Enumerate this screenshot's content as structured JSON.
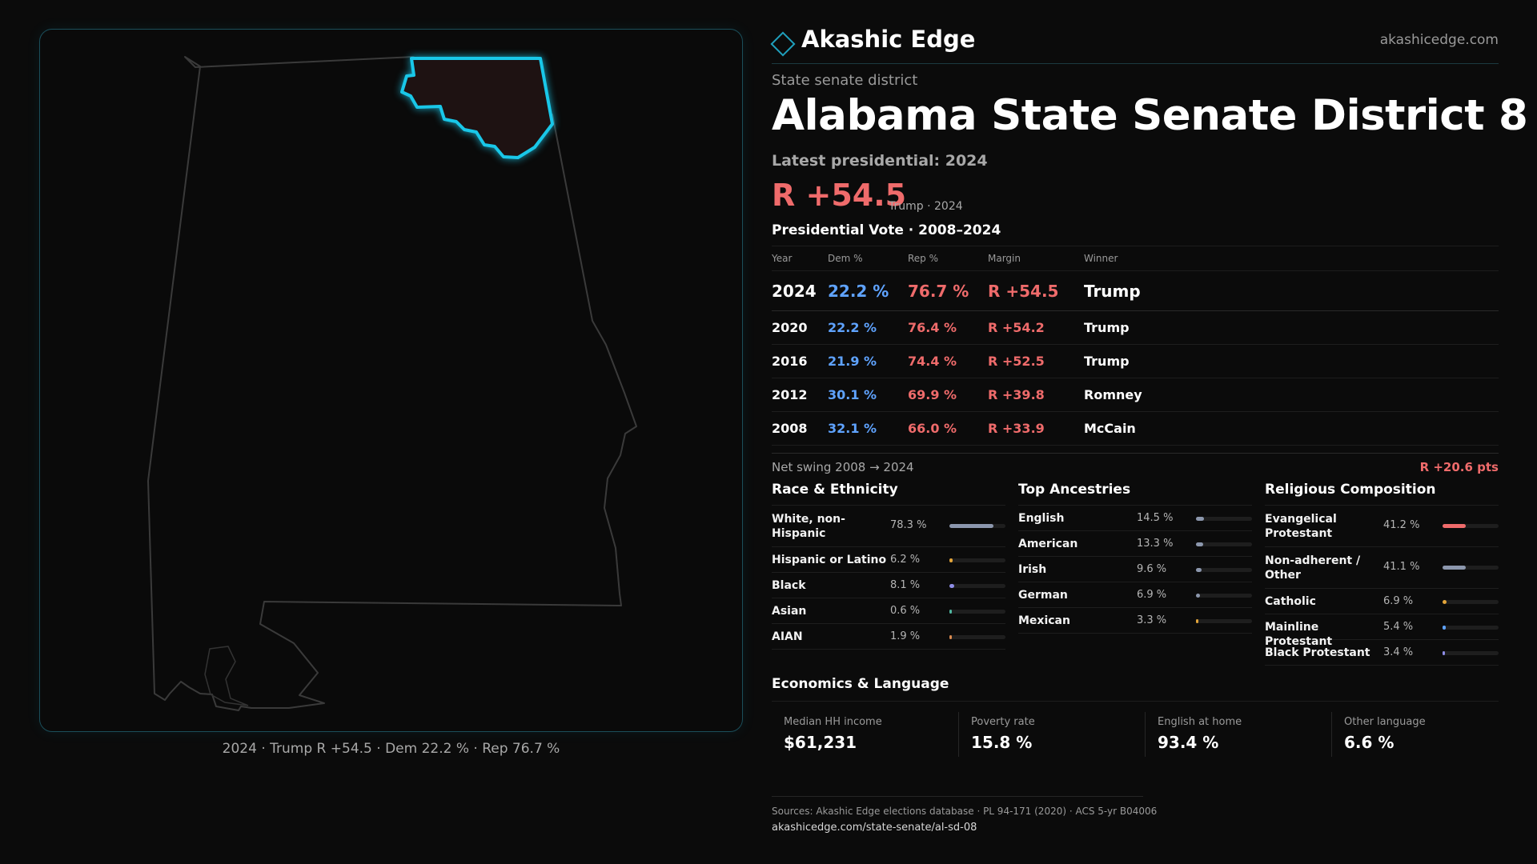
{
  "brand": {
    "name": "Akashic Edge",
    "url": "akashicedge.com",
    "logo_icon": "diamond-icon",
    "accent_color": "#1fa0bd"
  },
  "map": {
    "state": "Alabama",
    "highlight_color": "#19c7e8",
    "caption": "2024 · Trump R +54.5 · Dem 22.2 % · Rep 76.7 %"
  },
  "header": {
    "district_type": "State senate district",
    "title": "Alabama State Senate District 8",
    "latest_label": "Latest presidential: 2024",
    "margin": "R +54.5",
    "margin_sub": "Trump · 2024"
  },
  "vote_table": {
    "heading": "Presidential Vote · 2008–2024",
    "columns": [
      "Year",
      "Dem %",
      "Rep %",
      "Margin",
      "Winner"
    ],
    "rows": [
      {
        "year": "2024",
        "dem": "22.2 %",
        "rep": "76.7 %",
        "margin": "R +54.5",
        "winner": "Trump"
      },
      {
        "year": "2020",
        "dem": "22.2 %",
        "rep": "76.4 %",
        "margin": "R +54.2",
        "winner": "Trump"
      },
      {
        "year": "2016",
        "dem": "21.9 %",
        "rep": "74.4 %",
        "margin": "R +52.5",
        "winner": "Trump"
      },
      {
        "year": "2012",
        "dem": "30.1 %",
        "rep": "69.9 %",
        "margin": "R +39.8",
        "winner": "Romney"
      },
      {
        "year": "2008",
        "dem": "32.1 %",
        "rep": "66.0 %",
        "margin": "R +33.9",
        "winner": "McCain"
      }
    ],
    "colors": {
      "dem": "#5fa3ff",
      "rep": "#ef6b6b"
    }
  },
  "swing": {
    "label": "Net swing 2008 → 2024",
    "value": "R +20.6 pts"
  },
  "race": {
    "title": "Race & Ethnicity",
    "rows": [
      {
        "label": "White, non-Hispanic",
        "value": "78.3 %",
        "share": 0.783,
        "color": "#8c97ad"
      },
      {
        "label": "Hispanic or Latino",
        "value": "6.2 %",
        "share": 0.062,
        "color": "#e3a53a"
      },
      {
        "label": "Black",
        "value": "8.1 %",
        "share": 0.081,
        "color": "#8e8de6"
      },
      {
        "label": "Asian",
        "value": "0.6 %",
        "share": 0.006,
        "color": "#4fb7a0"
      },
      {
        "label": "AIAN",
        "value": "1.9 %",
        "share": 0.019,
        "color": "#d98a4f"
      }
    ]
  },
  "ancestry": {
    "title": "Top Ancestries",
    "rows": [
      {
        "label": "English",
        "value": "14.5 %",
        "share": 0.145,
        "color": "#8c97ad"
      },
      {
        "label": "American",
        "value": "13.3 %",
        "share": 0.133,
        "color": "#8c97ad"
      },
      {
        "label": "Irish",
        "value": "9.6 %",
        "share": 0.096,
        "color": "#8c97ad"
      },
      {
        "label": "German",
        "value": "6.9 %",
        "share": 0.069,
        "color": "#8c97ad"
      },
      {
        "label": "Mexican",
        "value": "3.3 %",
        "share": 0.033,
        "color": "#e3a53a"
      }
    ]
  },
  "religion": {
    "title": "Religious Composition",
    "rows": [
      {
        "label": "Evangelical Protestant",
        "value": "41.2 %",
        "share": 0.412,
        "color": "#ef6b6b"
      },
      {
        "label": "Non-adherent / Other",
        "value": "41.1 %",
        "share": 0.411,
        "color": "#8c97ad"
      },
      {
        "label": "Catholic",
        "value": "6.9 %",
        "share": 0.069,
        "color": "#e3a53a"
      },
      {
        "label": "Mainline Protestant",
        "value": "5.4 %",
        "share": 0.054,
        "color": "#5fa3ff"
      },
      {
        "label": "Black Protestant",
        "value": "3.4 %",
        "share": 0.034,
        "color": "#8e8de6"
      }
    ]
  },
  "economics": {
    "title": "Economics & Language",
    "cards": [
      {
        "label": "Median HH income",
        "value": "$61,231"
      },
      {
        "label": "Poverty rate",
        "value": "15.8 %"
      },
      {
        "label": "English at home",
        "value": "93.4 %"
      },
      {
        "label": "Other language",
        "value": "6.6 %"
      }
    ]
  },
  "footer": {
    "sources": "Sources: Akashic Edge elections database · PL 94-171 (2020) · ACS 5-yr B04006",
    "url": "akashicedge.com/state-senate/al-sd-08"
  }
}
